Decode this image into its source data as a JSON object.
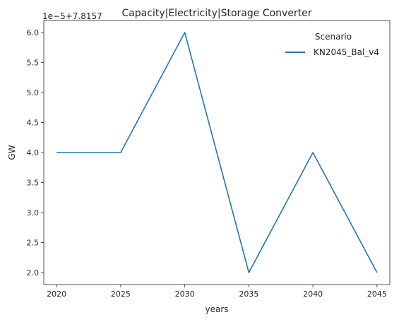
{
  "chart_data": {
    "type": "line",
    "title": "Capacity|Electricity|Storage Converter",
    "xlabel": "years",
    "ylabel": "GW",
    "offset_label": "1e−5+7.8157",
    "x": [
      2020,
      2025,
      2030,
      2035,
      2040,
      2045
    ],
    "x_ticks": [
      "2020",
      "2025",
      "2030",
      "2035",
      "2040",
      "2045"
    ],
    "y_ticks": [
      "2.0",
      "2.5",
      "3.0",
      "3.5",
      "4.0",
      "4.5",
      "5.0",
      "5.5",
      "6.0"
    ],
    "ylim": [
      1.8,
      6.2
    ],
    "xlim": [
      2019,
      2046
    ],
    "series": [
      {
        "name": "KN2045_Bal_v4",
        "color": "#1f77b4",
        "values": [
          4.0,
          4.0,
          6.0,
          2.0,
          4.0,
          2.0
        ]
      }
    ],
    "legend": {
      "title": "Scenario",
      "placement": "top-right"
    },
    "grid": false
  }
}
